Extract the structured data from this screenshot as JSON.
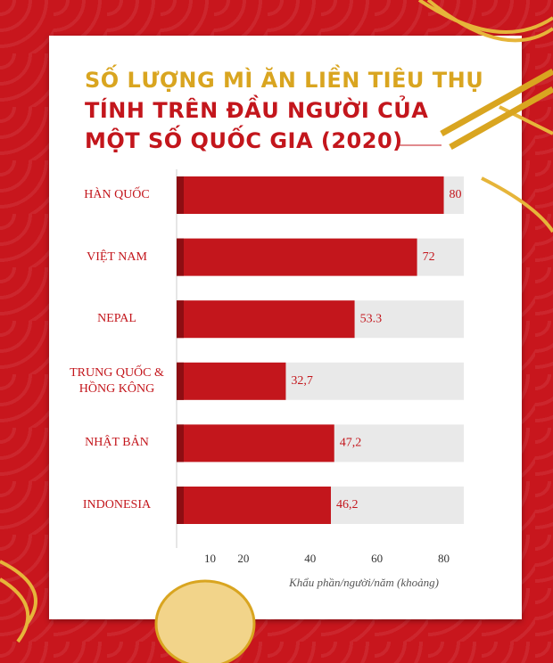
{
  "chart_data": {
    "type": "bar",
    "orientation": "horizontal",
    "title": [
      "SỐ LƯỢNG MÌ ĂN LIỀN TIÊU THỤ",
      "TÍNH TRÊN ĐẦU NGƯỜI CỦA",
      "MỘT SỐ QUỐC GIA (2020)"
    ],
    "categories": [
      "HÀN QUỐC",
      "VIỆT NAM",
      "NEPAL",
      "TRUNG QUỐC & HỒNG KÔNG",
      "NHẬT BẢN",
      "INDONESIA"
    ],
    "values": [
      80,
      72,
      53.3,
      32.7,
      47.2,
      46.2
    ],
    "value_labels": [
      "80",
      "72",
      "53.3",
      "32,7",
      "47,2",
      "46,2"
    ],
    "color": "#c3161c",
    "xlim": [
      0,
      86
    ],
    "xticks": [
      10,
      20,
      40,
      60,
      80
    ],
    "xlabel": "Khẩu phần/người/năm (khoảng)"
  }
}
